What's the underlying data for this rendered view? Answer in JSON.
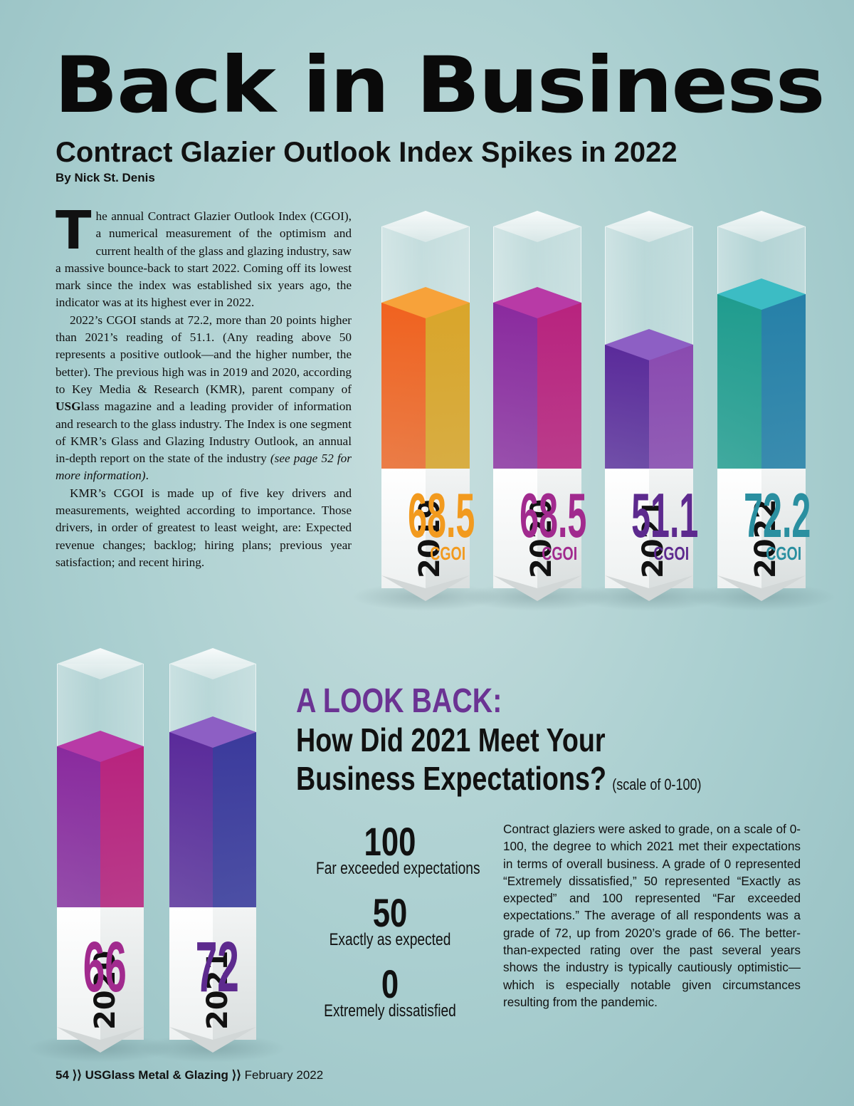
{
  "header": {
    "headline": "Back in Business",
    "subhead": "Contract Glazier Outlook Index Spikes in 2022",
    "byline": "By Nick St. Denis"
  },
  "article": {
    "dropcap": "T",
    "p1": "he annual Contract Glazier Outlook Index (CGOI), a numerical measurement of the optimism and current health of the glass and glazing industry, saw a massive bounce-back to start 2022. Coming off its lowest mark since the index was established six years ago, the indicator was at its highest ever in 2022.",
    "p2_a": "2022’s CGOI stands at 72.2, more than 20 points higher than 2021’s reading of 51.1. (Any reading above 50 represents a positive outlook—and the higher number, the better). The previous high was in 2019 and 2020, according to Key Media & Research (KMR), parent company of ",
    "p2_brand_bold": "USG",
    "p2_brand_rest": "lass",
    "p2_b": " magazine and a leading provider of information and research to the glass industry. The Index is one segment of KMR’s Glass and Glazing Industry Outlook, an annual in-depth report on the state of the industry ",
    "p2_italic": "(see page 52 for more information)",
    "p2_c": ".",
    "p3": "KMR’s CGOI is made up of five key drivers and measurements, weighted according to importance. Those drivers, in order of greatest to least weight, are: Expected revenue changes; backlog; hiring plans; previous year satisfaction; and recent hiring."
  },
  "cgoi_chart": {
    "unit_label": "CGOI",
    "bars": [
      {
        "year": "2019",
        "value": 68.5,
        "label": "68.5",
        "color_left": "#f0621f",
        "color_right": "#d9a52a",
        "color_top": "#f7a23a",
        "text_color": "#f29a1e"
      },
      {
        "year": "2020",
        "value": 68.5,
        "label": "68.5",
        "color_left": "#8a2a9e",
        "color_right": "#b8237e",
        "color_top": "#b83aa6",
        "text_color": "#a12a8e"
      },
      {
        "year": "2021",
        "value": 51.1,
        "label": "51.1",
        "color_left": "#5a2a9a",
        "color_right": "#8a4ab0",
        "color_top": "#8d5fc4",
        "text_color": "#5d2a8e"
      },
      {
        "year": "2022",
        "value": 72.2,
        "label": "72.2",
        "color_left": "#1f9c8e",
        "color_right": "#2680a8",
        "color_top": "#3cbcc4",
        "text_color": "#2a8fa0"
      }
    ]
  },
  "lookback_chart": {
    "bars": [
      {
        "year": "2020",
        "value": 66,
        "label": "66",
        "color_left": "#8a2a9e",
        "color_right": "#b8237e",
        "color_top": "#b83aa6",
        "text_color": "#a12a8e"
      },
      {
        "year": "2021",
        "value": 72,
        "label": "72",
        "color_left": "#5a2a9a",
        "color_right": "#3b3a9c",
        "color_top": "#8d5fc4",
        "text_color": "#5d2a8e"
      }
    ]
  },
  "lookback": {
    "title": "A LOOK BACK:",
    "title_color": "#6b3393",
    "question_line1": "How Did 2021 Meet Your",
    "question_line2": "Business Expectations?",
    "scale_note": "(scale of 0-100)",
    "scale": [
      {
        "num": "100",
        "desc": "Far exceeded expectations"
      },
      {
        "num": "50",
        "desc": "Exactly as expected"
      },
      {
        "num": "0",
        "desc": "Extremely dissatisfied"
      }
    ],
    "body": "Contract glaziers were asked to grade, on a scale of 0-100, the degree to which 2021 met their expectations in terms of overall business. A grade of 0 represented “Extremely dissatisfied,” 50 represented “Exactly as expected” and 100 represented “Far exceeded expectations.” The average of all respondents was a grade of 72, up from 2020’s grade of 66. The better-than-expected rating over the past several years shows the industry is typically cautiously optimistic—which is especially notable given circumstances resulting from the pandemic."
  },
  "footer": {
    "page": "54",
    "sep1": "⟩⟩",
    "magazine": "USGlass Metal & Glazing",
    "sep2": "⟩⟩",
    "issue": "February 2022"
  }
}
